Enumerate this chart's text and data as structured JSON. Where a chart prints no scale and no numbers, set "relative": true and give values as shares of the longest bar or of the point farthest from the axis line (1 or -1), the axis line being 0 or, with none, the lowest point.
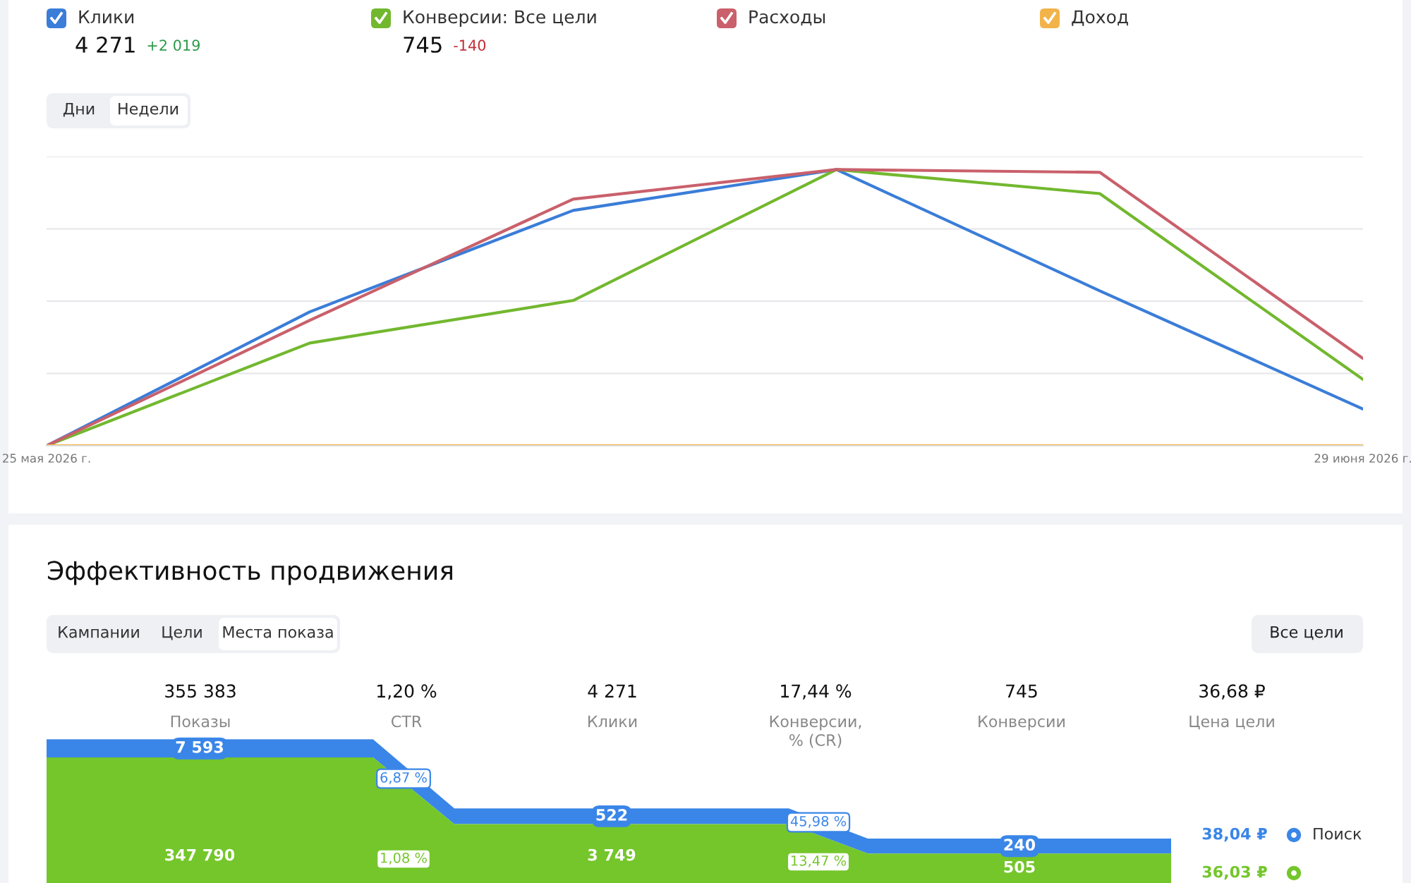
{
  "chart_data": [
    {
      "type": "line",
      "relative": true,
      "grid": "y",
      "legend": "top left",
      "categories": [
        "25 мая 2026 г.",
        null,
        null,
        null,
        null,
        "29 июня 2026 г."
      ],
      "series": [
        {
          "name": "Клики",
          "color": "#3b7dd8",
          "values": [
            0,
            0.485,
            0.852,
            1,
            0.561,
            0.133
          ]
        },
        {
          "name": "Конверсии: Все цели",
          "color": "#72b82e",
          "values": [
            0,
            0.372,
            0.526,
            1,
            0.913,
            0.24
          ]
        },
        {
          "name": "Расходы",
          "color": "#c9606b",
          "values": [
            0,
            0.454,
            0.893,
            1,
            0.99,
            0.316
          ]
        },
        {
          "name": "Доход",
          "color": "#f2b34a",
          "values": [
            0,
            0,
            0,
            0,
            0,
            0
          ]
        }
      ],
      "annotations": [
        "4 271",
        "+2 019",
        "745",
        "-140",
        "Дни",
        "Недели"
      ]
    },
    {
      "type": "other",
      "title": "Эффективность продвижения",
      "categories": [
        "Показы",
        "CTR",
        "Клики",
        "Конверсии, % (CR)",
        "Конверсии",
        "Цена цели"
      ],
      "totals": [
        "355 383",
        "1,20 %",
        "4 271",
        "17,44 %",
        "745",
        "36,68 ₽"
      ],
      "series": [
        {
          "name": "Поиск",
          "color": "#3a86e8",
          "values": [
            7593,
            6.87,
            522,
            45.98,
            240,
            38.04
          ],
          "value_labels": [
            "7 593",
            "6,87 %",
            "522",
            "45,98 %",
            "240",
            "38,04 ₽"
          ]
        },
        {
          "color": "#74c62b",
          "values": [
            347790,
            1.08,
            3749,
            13.47,
            505,
            36.03
          ],
          "value_labels": [
            "347 790",
            "1,08 %",
            "3 749",
            "13,47 %",
            "505",
            "36,03 ₽"
          ]
        }
      ],
      "annotations": [
        "Кампании",
        "Цели",
        "Места показа",
        "Все цели"
      ]
    }
  ]
}
